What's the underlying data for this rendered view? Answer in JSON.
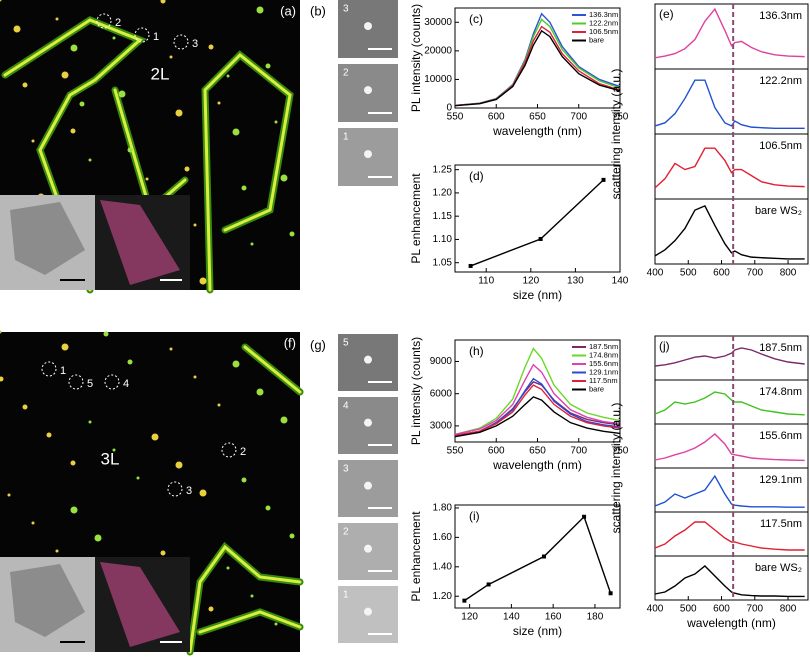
{
  "images": [
    {
      "panel_label": "(a)",
      "layer_label": "2L",
      "spot_labels": [
        "2",
        "1",
        "3"
      ]
    },
    {
      "panel_label": "(b)",
      "tile_labels": [
        "3",
        "2",
        "1"
      ]
    },
    {
      "panel_label": "(f)",
      "layer_label": "3L",
      "spot_labels": [
        "1",
        "5",
        "4",
        "2",
        "3"
      ]
    },
    {
      "panel_label": "(g)",
      "tile_labels": [
        "5",
        "4",
        "3",
        "2",
        "1"
      ]
    }
  ],
  "chart_data": [
    {
      "type": "line",
      "panel_label": "(c)",
      "xlabel": "wavelength (nm)",
      "ylabel": "PL intensity (counts)",
      "x": [
        550,
        580,
        600,
        620,
        635,
        645,
        655,
        665,
        680,
        700,
        725,
        750
      ],
      "xlim": [
        550,
        750
      ],
      "xticks": [
        550,
        600,
        650,
        700,
        750
      ],
      "ylim": [
        0,
        35000
      ],
      "yticks": [
        0,
        10000,
        20000,
        30000
      ],
      "legend": "upper right",
      "series": [
        {
          "name": "136.3nm",
          "color": "#2a55d8",
          "values": [
            900,
            1700,
            3300,
            8200,
            17000,
            26000,
            33000,
            30000,
            21500,
            14500,
            10000,
            7500
          ]
        },
        {
          "name": "122.2nm",
          "color": "#4ccc2a",
          "values": [
            900,
            1600,
            3200,
            8000,
            16500,
            25000,
            31000,
            28500,
            20500,
            14000,
            9500,
            7000
          ]
        },
        {
          "name": "106.5nm",
          "color": "#e0203a",
          "values": [
            900,
            1600,
            3100,
            7800,
            16000,
            23500,
            28500,
            26500,
            19000,
            13000,
            8500,
            6300
          ]
        },
        {
          "name": "bare",
          "color": "#000000",
          "values": [
            800,
            1500,
            3000,
            7500,
            15000,
            22000,
            27000,
            25000,
            18000,
            12000,
            8000,
            6000
          ]
        }
      ]
    },
    {
      "type": "line",
      "panel_label": "(d)",
      "xlabel": "size (nm)",
      "ylabel": "PL enhancement",
      "x": [
        106.5,
        122.2,
        136.3
      ],
      "xlim": [
        103,
        140
      ],
      "xticks": [
        110,
        120,
        130,
        140
      ],
      "ylim": [
        1.03,
        1.26
      ],
      "yticks": [
        1.05,
        {
          "value": 1.1,
          "label": "1.10"
        },
        1.15,
        {
          "value": 1.2,
          "label": "1.20"
        },
        1.25
      ],
      "markers": true,
      "series": [
        {
          "color": "#000000",
          "values": [
            1.043,
            1.101,
            1.228
          ]
        }
      ]
    },
    {
      "type": "ridgeline",
      "panel_label": "(e)",
      "ylabel": "scattering intensity (a.u.)",
      "x": [
        400,
        430,
        460,
        490,
        520,
        550,
        580,
        610,
        630,
        640,
        660,
        690,
        720,
        760,
        800,
        850
      ],
      "xlim": [
        400,
        860
      ],
      "xticks": [
        400,
        500,
        600,
        700,
        800
      ],
      "ylim": [
        0,
        1
      ],
      "marker_x": 635,
      "marker_color": "#8a4a70",
      "series": [
        {
          "name": "136.3nm",
          "color": "#e040a0",
          "values": [
            0.15,
            0.18,
            0.22,
            0.3,
            0.45,
            0.75,
            0.95,
            0.6,
            0.35,
            0.4,
            0.42,
            0.32,
            0.25,
            0.2,
            0.18,
            0.17
          ]
        },
        {
          "name": "122.2nm",
          "color": "#2050d0",
          "values": [
            0.1,
            0.15,
            0.3,
            0.55,
            0.85,
            0.85,
            0.4,
            0.15,
            0.1,
            0.18,
            0.12,
            0.08,
            0.07,
            0.06,
            0.06,
            0.06
          ]
        },
        {
          "name": "106.5nm",
          "color": "#e02030",
          "values": [
            0.15,
            0.3,
            0.55,
            0.45,
            0.5,
            0.8,
            0.8,
            0.6,
            0.4,
            0.45,
            0.45,
            0.35,
            0.25,
            0.2,
            0.18,
            0.17
          ]
        },
        {
          "name": "bare WS₂",
          "color": "#000000",
          "values": [
            0.1,
            0.2,
            0.35,
            0.55,
            0.85,
            0.92,
            0.6,
            0.3,
            0.15,
            0.18,
            0.12,
            0.08,
            0.07,
            0.06,
            0.05,
            0.05
          ]
        }
      ]
    },
    {
      "type": "line",
      "panel_label": "(h)",
      "xlabel": "wavelength (nm)",
      "ylabel": "PL intensity (counts)",
      "x": [
        550,
        580,
        600,
        620,
        635,
        645,
        655,
        670,
        690,
        710,
        730,
        750
      ],
      "xlim": [
        550,
        750
      ],
      "xticks": [
        550,
        600,
        650,
        700,
        750
      ],
      "ylim": [
        1500,
        11000
      ],
      "yticks": [
        3000,
        6000,
        9000
      ],
      "legend": "upper right",
      "series": [
        {
          "name": "187.5nm",
          "color": "#7a2a6a",
          "values": [
            2100,
            2500,
            3300,
            4600,
            6200,
            7100,
            6800,
            5400,
            4200,
            3600,
            3300,
            3100
          ]
        },
        {
          "name": "174.8nm",
          "color": "#6ad82a",
          "values": [
            2200,
            2800,
            3700,
            5500,
            8500,
            10200,
            9300,
            6800,
            5000,
            4200,
            3800,
            3500
          ]
        },
        {
          "name": "155.6nm",
          "color": "#e040b0",
          "values": [
            2200,
            2700,
            3500,
            5000,
            7300,
            8700,
            8000,
            6000,
            4500,
            3800,
            3400,
            3200
          ]
        },
        {
          "name": "129.1nm",
          "color": "#2a4ad0",
          "values": [
            2100,
            2500,
            3300,
            4500,
            6300,
            7400,
            6900,
            5300,
            4100,
            3400,
            3100,
            2900
          ]
        },
        {
          "name": "117.5nm",
          "color": "#e0203a",
          "values": [
            2100,
            2500,
            3200,
            4300,
            5900,
            6800,
            6400,
            5000,
            3900,
            3300,
            3000,
            2800
          ]
        },
        {
          "name": "bare",
          "color": "#000000",
          "values": [
            2000,
            2400,
            3000,
            3900,
            5000,
            5700,
            5400,
            4300,
            3300,
            2800,
            2500,
            2300
          ]
        }
      ]
    },
    {
      "type": "line",
      "panel_label": "(i)",
      "xlabel": "size (nm)",
      "ylabel": "PL enhancement",
      "x": [
        117.5,
        129.1,
        155.6,
        174.8,
        187.5
      ],
      "xlim": [
        113,
        192
      ],
      "xticks": [
        120,
        140,
        160,
        180
      ],
      "ylim": [
        1.12,
        1.82
      ],
      "yticks": [
        {
          "value": 1.2,
          "label": "1.20"
        },
        {
          "value": 1.4,
          "label": "1.40"
        },
        {
          "value": 1.6,
          "label": "1.60"
        },
        {
          "value": 1.8,
          "label": "1.80"
        }
      ],
      "markers": true,
      "series": [
        {
          "color": "#000000",
          "values": [
            1.17,
            1.28,
            1.47,
            1.74,
            1.22
          ]
        }
      ]
    },
    {
      "type": "ridgeline",
      "panel_label": "(j)",
      "xlabel": "wavelength (nm)",
      "ylabel": "scattering intensity (a.u.)",
      "x": [
        400,
        430,
        460,
        490,
        520,
        550,
        580,
        610,
        630,
        640,
        660,
        690,
        720,
        760,
        800,
        850
      ],
      "xlim": [
        400,
        860
      ],
      "xticks": [
        400,
        500,
        600,
        700,
        800
      ],
      "ylim": [
        0,
        1
      ],
      "marker_x": 635,
      "marker_color": "#8a4a70",
      "series": [
        {
          "name": "187.5nm",
          "color": "#7a2a6a",
          "values": [
            0.3,
            0.33,
            0.38,
            0.45,
            0.52,
            0.55,
            0.5,
            0.55,
            0.62,
            0.7,
            0.75,
            0.7,
            0.6,
            0.48,
            0.4,
            0.35
          ]
        },
        {
          "name": "174.8nm",
          "color": "#40c020",
          "values": [
            0.2,
            0.3,
            0.5,
            0.45,
            0.5,
            0.6,
            0.75,
            0.7,
            0.55,
            0.5,
            0.5,
            0.4,
            0.3,
            0.25,
            0.2,
            0.18
          ]
        },
        {
          "name": "155.6nm",
          "color": "#e040a0",
          "values": [
            0.15,
            0.2,
            0.28,
            0.35,
            0.45,
            0.6,
            0.8,
            0.55,
            0.3,
            0.28,
            0.25,
            0.2,
            0.18,
            0.16,
            0.15,
            0.14
          ]
        },
        {
          "name": "129.1nm",
          "color": "#2050d0",
          "values": [
            0.1,
            0.2,
            0.4,
            0.3,
            0.4,
            0.5,
            0.85,
            0.4,
            0.15,
            0.12,
            0.1,
            0.08,
            0.08,
            0.08,
            0.07,
            0.07
          ]
        },
        {
          "name": "117.5nm",
          "color": "#e02030",
          "values": [
            0.15,
            0.25,
            0.45,
            0.6,
            0.8,
            0.8,
            0.6,
            0.4,
            0.3,
            0.3,
            0.25,
            0.2,
            0.15,
            0.12,
            0.1,
            0.1
          ]
        },
        {
          "name": "bare WS₂",
          "color": "#000000",
          "values": [
            0.1,
            0.15,
            0.3,
            0.5,
            0.6,
            0.8,
            0.55,
            0.3,
            0.15,
            0.12,
            0.08,
            0.06,
            0.05,
            0.05,
            0.04,
            0.04
          ]
        }
      ]
    }
  ]
}
